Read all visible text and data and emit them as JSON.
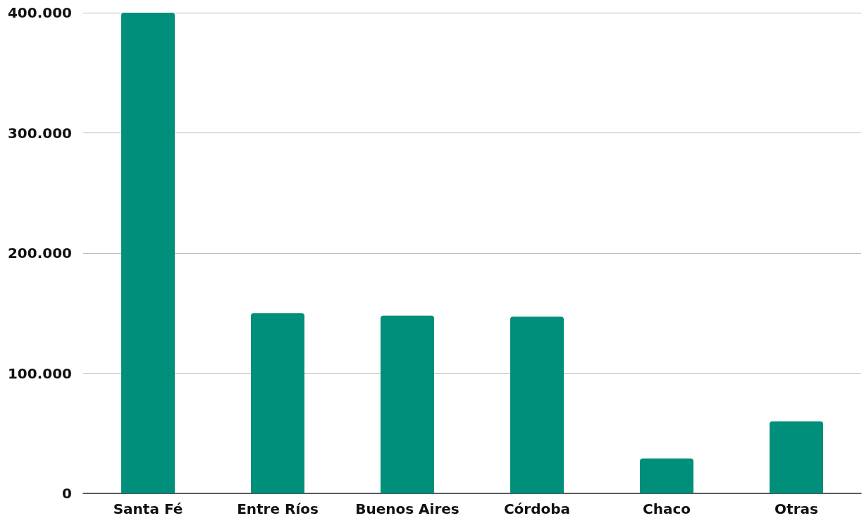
{
  "chart_data": {
    "type": "bar",
    "categories": [
      "Santa Fé",
      "Entre Ríos",
      "Buenos Aires",
      "Córdoba",
      "Chaco",
      "Otras"
    ],
    "values": [
      400000,
      150000,
      148000,
      147000,
      29000,
      60000
    ],
    "color": "#008f7a",
    "ylim": [
      0,
      400000
    ],
    "yticks": [
      {
        "value": 0,
        "label": "0"
      },
      {
        "value": 100000,
        "label": "100.000"
      },
      {
        "value": 200000,
        "label": "200.000"
      },
      {
        "value": 300000,
        "label": "300.000"
      },
      {
        "value": 400000,
        "label": "400.000"
      }
    ],
    "grid": "y"
  }
}
